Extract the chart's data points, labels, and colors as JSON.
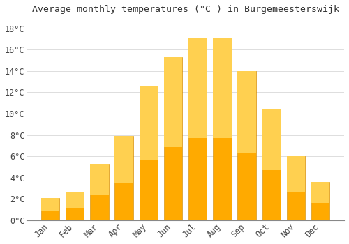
{
  "months": [
    "Jan",
    "Feb",
    "Mar",
    "Apr",
    "May",
    "Jun",
    "Jul",
    "Aug",
    "Sep",
    "Oct",
    "Nov",
    "Dec"
  ],
  "values": [
    2.1,
    2.6,
    5.3,
    7.9,
    12.6,
    15.3,
    17.1,
    17.1,
    14.0,
    10.4,
    6.0,
    3.6
  ],
  "bar_color_main": "#FFAA00",
  "bar_color_top": "#FFD050",
  "background_color": "#FFFFFF",
  "title": "Average monthly temperatures (°C ) in Burgemeesterswijk",
  "ylim": [
    0,
    19
  ],
  "yticks": [
    0,
    2,
    4,
    6,
    8,
    10,
    12,
    14,
    16,
    18
  ],
  "grid_color": "#DDDDDD",
  "title_fontsize": 9.5,
  "tick_fontsize": 8.5,
  "font_family": "monospace"
}
